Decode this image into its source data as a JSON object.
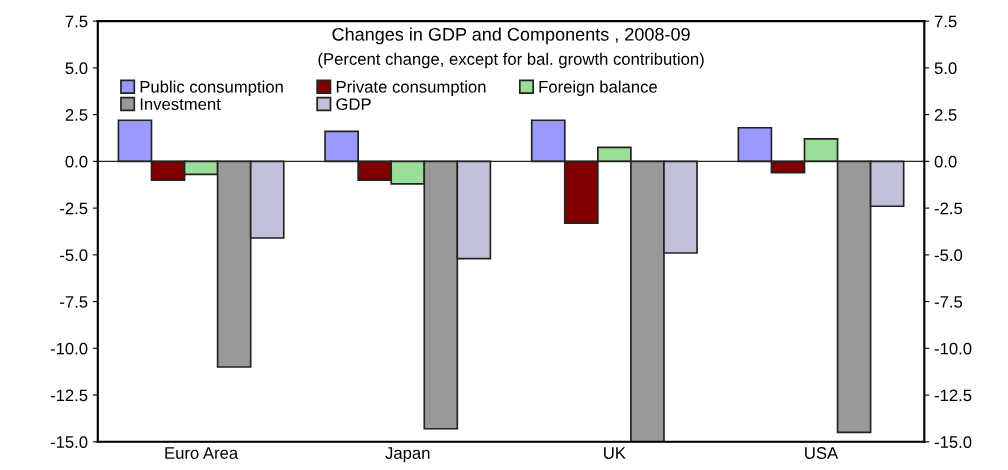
{
  "chart_data": {
    "type": "bar",
    "title": "Changes in GDP and Components , 2008-09",
    "subtitle": "(Percent change, except for bal. growth contribution)",
    "categories": [
      "Euro Area",
      "Japan",
      "UK",
      "USA"
    ],
    "series": [
      {
        "name": "Public consumption",
        "color": "#9999ff",
        "values": [
          2.2,
          1.6,
          2.2,
          1.8
        ]
      },
      {
        "name": "Private consumption",
        "color": "#800000",
        "values": [
          -1.0,
          -1.0,
          -3.3,
          -0.6
        ]
      },
      {
        "name": "Foreign balance",
        "color": "#99dd99",
        "values": [
          -0.7,
          -1.2,
          0.75,
          1.2
        ]
      },
      {
        "name": "Investment",
        "color": "#999999",
        "values": [
          -11.0,
          -14.3,
          -15.0,
          -14.5
        ]
      },
      {
        "name": "GDP",
        "color": "#c0c0d8",
        "values": [
          -4.1,
          -5.2,
          -4.9,
          -2.4
        ]
      }
    ],
    "ylim": [
      -15.0,
      7.5
    ],
    "yticks": [
      {
        "value": -15,
        "label": "-15.0"
      },
      {
        "value": -12.5,
        "label": "-12.5"
      },
      {
        "value": -10,
        "label": "-10.0"
      },
      {
        "value": -7.5,
        "label": "-7.5"
      },
      {
        "value": -5,
        "label": "-5.0"
      },
      {
        "value": -2.5,
        "label": "-2.5"
      },
      {
        "value": 0,
        "label": "0.0"
      },
      {
        "value": 2.5,
        "label": "2.5"
      },
      {
        "value": 5,
        "label": "5.0"
      },
      {
        "value": 7.5,
        "label": "7.5"
      }
    ],
    "y2lim": [
      -15.0,
      7.5
    ],
    "y2ticks": [
      {
        "value": -15,
        "label": "-15.0"
      },
      {
        "value": -12.5,
        "label": "-12.5"
      },
      {
        "value": -10,
        "label": "-10.0"
      },
      {
        "value": -7.5,
        "label": "-7.5"
      },
      {
        "value": -5,
        "label": "-5.0"
      },
      {
        "value": -2.5,
        "label": "-2.5"
      },
      {
        "value": 0,
        "label": "0.0"
      },
      {
        "value": 2.5,
        "label": "2.5"
      },
      {
        "value": 5,
        "label": "5.0"
      },
      {
        "value": 7.5,
        "label": "7.5"
      }
    ],
    "legend": "top left"
  }
}
